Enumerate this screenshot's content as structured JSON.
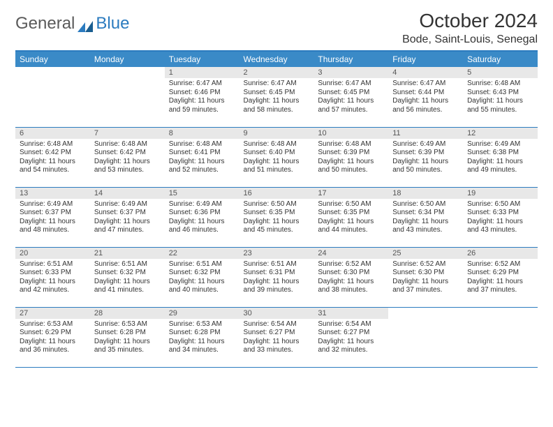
{
  "brand": {
    "part1": "General",
    "part2": "Blue"
  },
  "title": "October 2024",
  "location": "Bode, Saint-Louis, Senegal",
  "colors": {
    "header_bg": "#3a8ac7",
    "border": "#2b7bbf",
    "daynum_bg": "#e8e8e8",
    "text": "#333333"
  },
  "weekdays": [
    "Sunday",
    "Monday",
    "Tuesday",
    "Wednesday",
    "Thursday",
    "Friday",
    "Saturday"
  ],
  "weeks": [
    [
      null,
      null,
      {
        "n": "1",
        "sr": "6:47 AM",
        "ss": "6:46 PM",
        "dl": "11 hours and 59 minutes."
      },
      {
        "n": "2",
        "sr": "6:47 AM",
        "ss": "6:45 PM",
        "dl": "11 hours and 58 minutes."
      },
      {
        "n": "3",
        "sr": "6:47 AM",
        "ss": "6:45 PM",
        "dl": "11 hours and 57 minutes."
      },
      {
        "n": "4",
        "sr": "6:47 AM",
        "ss": "6:44 PM",
        "dl": "11 hours and 56 minutes."
      },
      {
        "n": "5",
        "sr": "6:48 AM",
        "ss": "6:43 PM",
        "dl": "11 hours and 55 minutes."
      }
    ],
    [
      {
        "n": "6",
        "sr": "6:48 AM",
        "ss": "6:42 PM",
        "dl": "11 hours and 54 minutes."
      },
      {
        "n": "7",
        "sr": "6:48 AM",
        "ss": "6:42 PM",
        "dl": "11 hours and 53 minutes."
      },
      {
        "n": "8",
        "sr": "6:48 AM",
        "ss": "6:41 PM",
        "dl": "11 hours and 52 minutes."
      },
      {
        "n": "9",
        "sr": "6:48 AM",
        "ss": "6:40 PM",
        "dl": "11 hours and 51 minutes."
      },
      {
        "n": "10",
        "sr": "6:48 AM",
        "ss": "6:39 PM",
        "dl": "11 hours and 50 minutes."
      },
      {
        "n": "11",
        "sr": "6:49 AM",
        "ss": "6:39 PM",
        "dl": "11 hours and 50 minutes."
      },
      {
        "n": "12",
        "sr": "6:49 AM",
        "ss": "6:38 PM",
        "dl": "11 hours and 49 minutes."
      }
    ],
    [
      {
        "n": "13",
        "sr": "6:49 AM",
        "ss": "6:37 PM",
        "dl": "11 hours and 48 minutes."
      },
      {
        "n": "14",
        "sr": "6:49 AM",
        "ss": "6:37 PM",
        "dl": "11 hours and 47 minutes."
      },
      {
        "n": "15",
        "sr": "6:49 AM",
        "ss": "6:36 PM",
        "dl": "11 hours and 46 minutes."
      },
      {
        "n": "16",
        "sr": "6:50 AM",
        "ss": "6:35 PM",
        "dl": "11 hours and 45 minutes."
      },
      {
        "n": "17",
        "sr": "6:50 AM",
        "ss": "6:35 PM",
        "dl": "11 hours and 44 minutes."
      },
      {
        "n": "18",
        "sr": "6:50 AM",
        "ss": "6:34 PM",
        "dl": "11 hours and 43 minutes."
      },
      {
        "n": "19",
        "sr": "6:50 AM",
        "ss": "6:33 PM",
        "dl": "11 hours and 43 minutes."
      }
    ],
    [
      {
        "n": "20",
        "sr": "6:51 AM",
        "ss": "6:33 PM",
        "dl": "11 hours and 42 minutes."
      },
      {
        "n": "21",
        "sr": "6:51 AM",
        "ss": "6:32 PM",
        "dl": "11 hours and 41 minutes."
      },
      {
        "n": "22",
        "sr": "6:51 AM",
        "ss": "6:32 PM",
        "dl": "11 hours and 40 minutes."
      },
      {
        "n": "23",
        "sr": "6:51 AM",
        "ss": "6:31 PM",
        "dl": "11 hours and 39 minutes."
      },
      {
        "n": "24",
        "sr": "6:52 AM",
        "ss": "6:30 PM",
        "dl": "11 hours and 38 minutes."
      },
      {
        "n": "25",
        "sr": "6:52 AM",
        "ss": "6:30 PM",
        "dl": "11 hours and 37 minutes."
      },
      {
        "n": "26",
        "sr": "6:52 AM",
        "ss": "6:29 PM",
        "dl": "11 hours and 37 minutes."
      }
    ],
    [
      {
        "n": "27",
        "sr": "6:53 AM",
        "ss": "6:29 PM",
        "dl": "11 hours and 36 minutes."
      },
      {
        "n": "28",
        "sr": "6:53 AM",
        "ss": "6:28 PM",
        "dl": "11 hours and 35 minutes."
      },
      {
        "n": "29",
        "sr": "6:53 AM",
        "ss": "6:28 PM",
        "dl": "11 hours and 34 minutes."
      },
      {
        "n": "30",
        "sr": "6:54 AM",
        "ss": "6:27 PM",
        "dl": "11 hours and 33 minutes."
      },
      {
        "n": "31",
        "sr": "6:54 AM",
        "ss": "6:27 PM",
        "dl": "11 hours and 32 minutes."
      },
      null,
      null
    ]
  ],
  "labels": {
    "sunrise": "Sunrise:",
    "sunset": "Sunset:",
    "daylight": "Daylight:"
  }
}
